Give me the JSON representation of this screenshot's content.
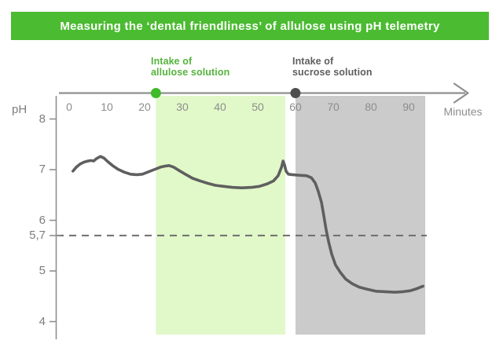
{
  "title": "Measuring the ‘dental friendliness’ of allulose using pH telemetry",
  "annotations": {
    "allulose": {
      "line1": "Intake of",
      "line2": "allulose solution"
    },
    "sucrose": {
      "line1": "Intake of",
      "line2": "sucrose solution"
    }
  },
  "colors": {
    "banner_bg": "#4bbb31",
    "banner_text": "#ffffff",
    "allulose_label": "#55b43c",
    "sucrose_label": "#5f5f5f",
    "allulose_region": "#e1f8c9",
    "sucrose_region": "#cbcbcb",
    "allulose_dot": "#3fba28",
    "sucrose_dot": "#4d4d4d",
    "curve": "#5f5f5f",
    "axis": "#8f8f8f",
    "tick_text": "#8d8d8d",
    "y_label_text": "#7d7d7d",
    "threshold_line": "#6e6e6e"
  },
  "chart_data": {
    "type": "line",
    "title": "Measuring the ‘dental friendliness’ of allulose using pH telemetry",
    "xlabel": "Minutes",
    "ylabel": "pH",
    "xlim": [
      0,
      105
    ],
    "ylim": [
      3.6,
      8.3
    ],
    "grid": false,
    "x_ticks": [
      0,
      10,
      20,
      30,
      40,
      50,
      60,
      70,
      80,
      90
    ],
    "y_ticks": [
      {
        "label": "8",
        "ph": 8
      },
      {
        "label": "7",
        "ph": 7
      },
      {
        "label": "6",
        "ph": 6
      },
      {
        "label": "5,7",
        "ph": 5.7
      },
      {
        "label": "5",
        "ph": 5
      },
      {
        "label": "4",
        "ph": 4
      }
    ],
    "threshold": {
      "ph": 5.7,
      "label": "5,7",
      "style": "dashed"
    },
    "regions": [
      {
        "name": "allulose",
        "label": "Intake of allulose solution",
        "start_min": 23,
        "end_min": 57.3,
        "color": "#e1f8c9"
      },
      {
        "name": "sucrose",
        "label": "Intake of sucrose solution",
        "start_min": 60,
        "end_min": 94.4,
        "color": "#cbcbcb"
      }
    ],
    "events": [
      {
        "name": "allulose",
        "min": 23,
        "color": "#3fba28"
      },
      {
        "name": "sucrose",
        "min": 60,
        "color": "#4d4d4d"
      }
    ],
    "series": [
      {
        "name": "plaque pH",
        "color": "#5f5f5f",
        "points": [
          [
            1.0,
            6.97
          ],
          [
            1.9,
            7.05
          ],
          [
            2.9,
            7.11
          ],
          [
            4.0,
            7.15
          ],
          [
            5.0,
            7.17
          ],
          [
            5.8,
            7.18
          ],
          [
            6.5,
            7.17
          ],
          [
            7.3,
            7.22
          ],
          [
            8.3,
            7.26
          ],
          [
            9.2,
            7.23
          ],
          [
            10.2,
            7.16
          ],
          [
            11.5,
            7.08
          ],
          [
            12.9,
            7.01
          ],
          [
            14.6,
            6.95
          ],
          [
            16.3,
            6.91
          ],
          [
            17.9,
            6.9
          ],
          [
            19.4,
            6.91
          ],
          [
            20.8,
            6.95
          ],
          [
            22.5,
            7.0
          ],
          [
            24.2,
            7.05
          ],
          [
            25.4,
            7.07
          ],
          [
            26.5,
            7.08
          ],
          [
            27.7,
            7.05
          ],
          [
            29.2,
            6.98
          ],
          [
            30.8,
            6.91
          ],
          [
            32.7,
            6.83
          ],
          [
            34.6,
            6.78
          ],
          [
            36.7,
            6.73
          ],
          [
            38.8,
            6.69
          ],
          [
            41.0,
            6.67
          ],
          [
            43.3,
            6.65
          ],
          [
            45.8,
            6.64
          ],
          [
            48.3,
            6.65
          ],
          [
            50.4,
            6.67
          ],
          [
            52.5,
            6.72
          ],
          [
            54.2,
            6.78
          ],
          [
            55.4,
            6.88
          ],
          [
            56.3,
            7.05
          ],
          [
            56.7,
            7.17
          ],
          [
            57.1,
            7.09
          ],
          [
            57.5,
            6.97
          ],
          [
            58.1,
            6.91
          ],
          [
            59.2,
            6.9
          ],
          [
            60.8,
            6.89
          ],
          [
            62.9,
            6.88
          ],
          [
            64.2,
            6.84
          ],
          [
            65.2,
            6.74
          ],
          [
            66.0,
            6.58
          ],
          [
            66.9,
            6.35
          ],
          [
            67.5,
            6.09
          ],
          [
            68.1,
            5.82
          ],
          [
            68.8,
            5.57
          ],
          [
            69.6,
            5.33
          ],
          [
            70.6,
            5.12
          ],
          [
            71.9,
            4.97
          ],
          [
            73.3,
            4.84
          ],
          [
            75.0,
            4.75
          ],
          [
            76.9,
            4.68
          ],
          [
            79.0,
            4.64
          ],
          [
            81.3,
            4.6
          ],
          [
            83.8,
            4.59
          ],
          [
            86.3,
            4.58
          ],
          [
            88.5,
            4.59
          ],
          [
            90.4,
            4.61
          ],
          [
            92.1,
            4.65
          ],
          [
            93.8,
            4.7
          ]
        ]
      }
    ]
  }
}
